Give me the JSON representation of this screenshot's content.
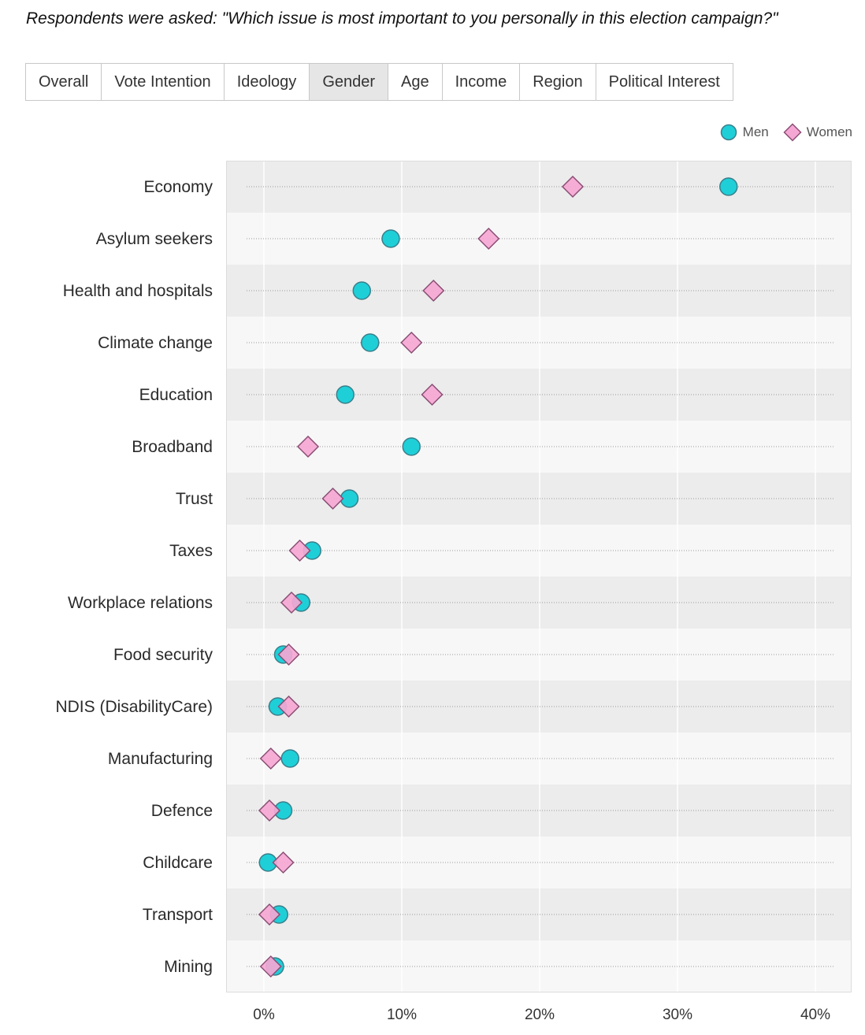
{
  "question": "Respondents were asked: \"Which issue is most important to you personally in this election campaign?\"",
  "tabs": [
    {
      "label": "Overall",
      "active": false
    },
    {
      "label": "Vote Intention",
      "active": false
    },
    {
      "label": "Ideology",
      "active": false
    },
    {
      "label": "Gender",
      "active": true
    },
    {
      "label": "Age",
      "active": false
    },
    {
      "label": "Income",
      "active": false
    },
    {
      "label": "Region",
      "active": false
    },
    {
      "label": "Political Interest",
      "active": false
    }
  ],
  "colors": {
    "men_fill": "#1ecfd8",
    "men_stroke": "#3a7f8a",
    "women_fill": "#f5a7d4",
    "women_stroke": "#8a4d74",
    "band_dark": "#ececec",
    "band_light": "#f7f7f7"
  },
  "legend": [
    {
      "label": "Men",
      "marker": "circle"
    },
    {
      "label": "Women",
      "marker": "diamond"
    }
  ],
  "chart_data": {
    "type": "scatter",
    "title": "",
    "xlabel": "",
    "ylabel": "",
    "xlim": [
      0,
      40
    ],
    "x_ticks": [
      0,
      10,
      20,
      30,
      40
    ],
    "x_tick_labels": [
      "0%",
      "10%",
      "20%",
      "30%",
      "40%"
    ],
    "legend_position": "top-right",
    "categories": [
      "Economy",
      "Asylum seekers",
      "Health and hospitals",
      "Climate change",
      "Education",
      "Broadband",
      "Trust",
      "Taxes",
      "Workplace relations",
      "Food security",
      "NDIS (DisabilityCare)",
      "Manufacturing",
      "Defence",
      "Childcare",
      "Transport",
      "Mining"
    ],
    "series": [
      {
        "name": "Men",
        "values": [
          33.7,
          9.2,
          7.1,
          7.7,
          5.9,
          10.7,
          6.2,
          3.5,
          2.7,
          1.4,
          1.0,
          1.9,
          1.4,
          0.3,
          1.1,
          0.8
        ]
      },
      {
        "name": "Women",
        "values": [
          22.4,
          16.3,
          12.3,
          10.7,
          12.2,
          3.2,
          5.0,
          2.6,
          2.0,
          1.8,
          1.8,
          0.5,
          0.4,
          1.4,
          0.4,
          0.5
        ]
      }
    ]
  }
}
